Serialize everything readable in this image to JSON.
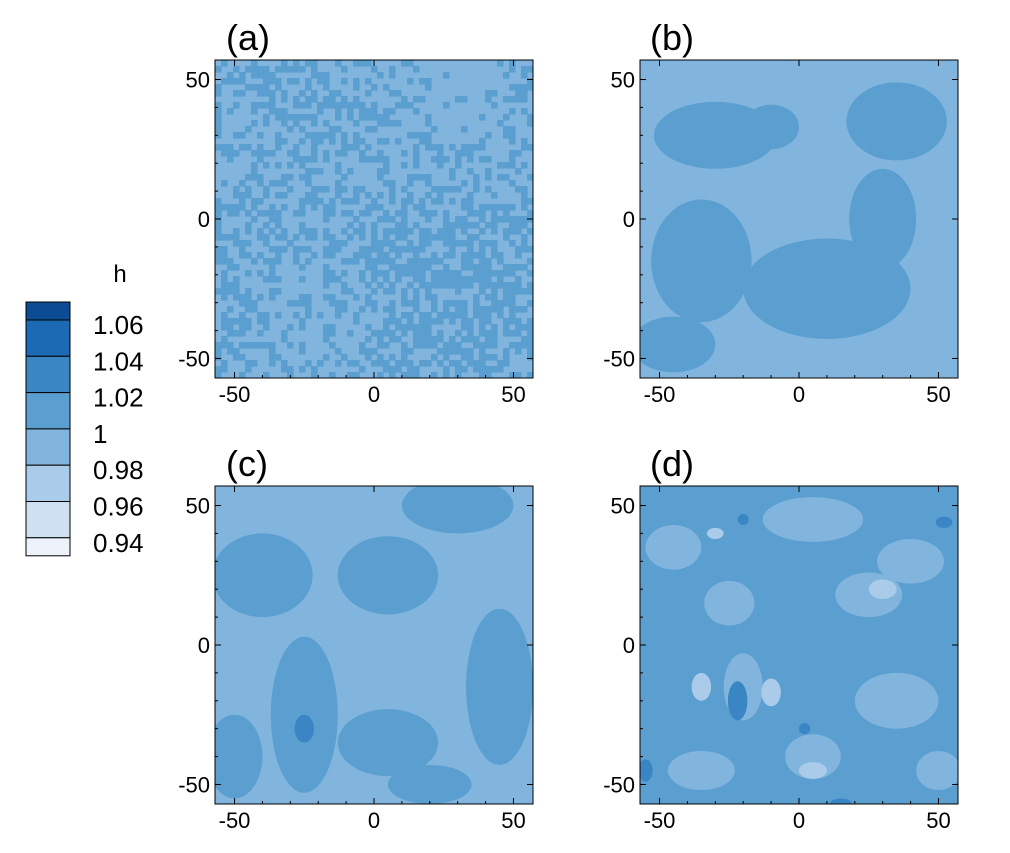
{
  "colors": {
    "levels": [
      "#eef3fb",
      "#cfe0f2",
      "#aaccea",
      "#82b5de",
      "#5a9fd0",
      "#3a86c4",
      "#1c6ab4",
      "#0b4c95"
    ],
    "panel_border": "#000000"
  },
  "legend": {
    "title": "h",
    "labels": [
      "1.06",
      "1.04",
      "1.02",
      "1",
      "0.98",
      "0.96",
      "0.94"
    ]
  },
  "chart_data": [
    {
      "type": "heatmap",
      "title": "(a)",
      "xlabel": "",
      "ylabel": "",
      "xlim": [
        -57,
        57
      ],
      "ylim": [
        -57,
        57
      ],
      "x_ticks": [
        -50,
        0,
        50
      ],
      "y_ticks": [
        -50,
        0,
        50
      ],
      "x_tick_labels": [
        "-50",
        "0",
        "50"
      ],
      "y_tick_labels": [
        "-50",
        "0",
        "50"
      ],
      "levels": [
        0.94,
        0.96,
        0.98,
        1.0,
        1.02,
        1.04,
        1.06
      ],
      "field": "fine-grained noisy pattern with values between 0.98 and 1.02",
      "regions": []
    },
    {
      "type": "heatmap",
      "title": "(b)",
      "xlabel": "",
      "ylabel": "",
      "xlim": [
        -57,
        57
      ],
      "ylim": [
        -57,
        57
      ],
      "x_ticks": [
        -50,
        0,
        50
      ],
      "y_ticks": [
        -50,
        0,
        50
      ],
      "x_tick_labels": [
        "-50",
        "0",
        "50"
      ],
      "y_tick_labels": [
        "-50",
        "0",
        "50"
      ],
      "levels": [
        0.94,
        0.96,
        0.98,
        1.0,
        1.02,
        1.04,
        1.06
      ],
      "background_level": 3,
      "regions": [
        {
          "level": 4,
          "cx": -35,
          "cy": -15,
          "rx": 18,
          "ry": 22
        },
        {
          "level": 4,
          "cx": 10,
          "cy": -25,
          "rx": 30,
          "ry": 18
        },
        {
          "level": 4,
          "cx": -30,
          "cy": 30,
          "rx": 22,
          "ry": 12
        },
        {
          "level": 4,
          "cx": 35,
          "cy": 35,
          "rx": 18,
          "ry": 14
        },
        {
          "level": 4,
          "cx": 30,
          "cy": 0,
          "rx": 12,
          "ry": 18
        },
        {
          "level": 4,
          "cx": -10,
          "cy": 33,
          "rx": 10,
          "ry": 8
        },
        {
          "level": 4,
          "cx": -45,
          "cy": -45,
          "rx": 15,
          "ry": 10
        }
      ]
    },
    {
      "type": "heatmap",
      "title": "(c)",
      "xlabel": "",
      "ylabel": "",
      "xlim": [
        -57,
        57
      ],
      "ylim": [
        -57,
        57
      ],
      "x_ticks": [
        -50,
        0,
        50
      ],
      "y_ticks": [
        -50,
        0,
        50
      ],
      "x_tick_labels": [
        "-50",
        "0",
        "50"
      ],
      "y_tick_labels": [
        "-50",
        "0",
        "50"
      ],
      "levels": [
        0.94,
        0.96,
        0.98,
        1.0,
        1.02,
        1.04,
        1.06
      ],
      "background_level": 3,
      "regions": [
        {
          "level": 4,
          "cx": -40,
          "cy": 25,
          "rx": 18,
          "ry": 15
        },
        {
          "level": 4,
          "cx": 30,
          "cy": 50,
          "rx": 20,
          "ry": 10
        },
        {
          "level": 4,
          "cx": 5,
          "cy": 25,
          "rx": 18,
          "ry": 14
        },
        {
          "level": 4,
          "cx": -25,
          "cy": -25,
          "rx": 12,
          "ry": 28
        },
        {
          "level": 4,
          "cx": 5,
          "cy": -35,
          "rx": 18,
          "ry": 12
        },
        {
          "level": 4,
          "cx": 45,
          "cy": -15,
          "rx": 12,
          "ry": 28
        },
        {
          "level": 4,
          "cx": -50,
          "cy": -40,
          "rx": 10,
          "ry": 15
        },
        {
          "level": 4,
          "cx": 20,
          "cy": -50,
          "rx": 15,
          "ry": 7
        },
        {
          "level": 5,
          "cx": -25,
          "cy": -30,
          "rx": 3.5,
          "ry": 5
        }
      ]
    },
    {
      "type": "heatmap",
      "title": "(d)",
      "xlabel": "",
      "ylabel": "",
      "xlim": [
        -57,
        57
      ],
      "ylim": [
        -57,
        57
      ],
      "x_ticks": [
        -50,
        0,
        50
      ],
      "y_ticks": [
        -50,
        0,
        50
      ],
      "x_tick_labels": [
        "-50",
        "0",
        "50"
      ],
      "y_tick_labels": [
        "-50",
        "0",
        "50"
      ],
      "levels": [
        0.94,
        0.96,
        0.98,
        1.0,
        1.02,
        1.04,
        1.06
      ],
      "background_level": 4,
      "regions": [
        {
          "level": 3,
          "cx": -45,
          "cy": 35,
          "rx": 10,
          "ry": 8
        },
        {
          "level": 3,
          "cx": -25,
          "cy": 15,
          "rx": 9,
          "ry": 8
        },
        {
          "level": 3,
          "cx": 25,
          "cy": 18,
          "rx": 12,
          "ry": 8
        },
        {
          "level": 3,
          "cx": -20,
          "cy": -15,
          "rx": 7,
          "ry": 12
        },
        {
          "level": 3,
          "cx": 5,
          "cy": 45,
          "rx": 18,
          "ry": 8
        },
        {
          "level": 3,
          "cx": 40,
          "cy": 30,
          "rx": 12,
          "ry": 8
        },
        {
          "level": 3,
          "cx": 35,
          "cy": -20,
          "rx": 15,
          "ry": 10
        },
        {
          "level": 3,
          "cx": -35,
          "cy": -45,
          "rx": 12,
          "ry": 7
        },
        {
          "level": 3,
          "cx": 5,
          "cy": -40,
          "rx": 10,
          "ry": 8
        },
        {
          "level": 3,
          "cx": 50,
          "cy": -45,
          "rx": 8,
          "ry": 7
        },
        {
          "level": 2,
          "cx": -35,
          "cy": -15,
          "rx": 3.5,
          "ry": 5
        },
        {
          "level": 2,
          "cx": -10,
          "cy": -17,
          "rx": 3.5,
          "ry": 5
        },
        {
          "level": 2,
          "cx": 30,
          "cy": 20,
          "rx": 5,
          "ry": 3.5
        },
        {
          "level": 2,
          "cx": 5,
          "cy": -45,
          "rx": 5,
          "ry": 3
        },
        {
          "level": 2,
          "cx": -30,
          "cy": 40,
          "rx": 3,
          "ry": 2
        },
        {
          "level": 5,
          "cx": -22,
          "cy": -20,
          "rx": 3.5,
          "ry": 7
        },
        {
          "level": 5,
          "cx": -20,
          "cy": 45,
          "rx": 2,
          "ry": 2
        },
        {
          "level": 5,
          "cx": 52,
          "cy": 44,
          "rx": 3,
          "ry": 2
        },
        {
          "level": 5,
          "cx": 2,
          "cy": -30,
          "rx": 2,
          "ry": 2
        },
        {
          "level": 5,
          "cx": -55,
          "cy": -45,
          "rx": 2.5,
          "ry": 4
        },
        {
          "level": 5,
          "cx": 15,
          "cy": -57,
          "rx": 4,
          "ry": 2
        }
      ]
    }
  ]
}
